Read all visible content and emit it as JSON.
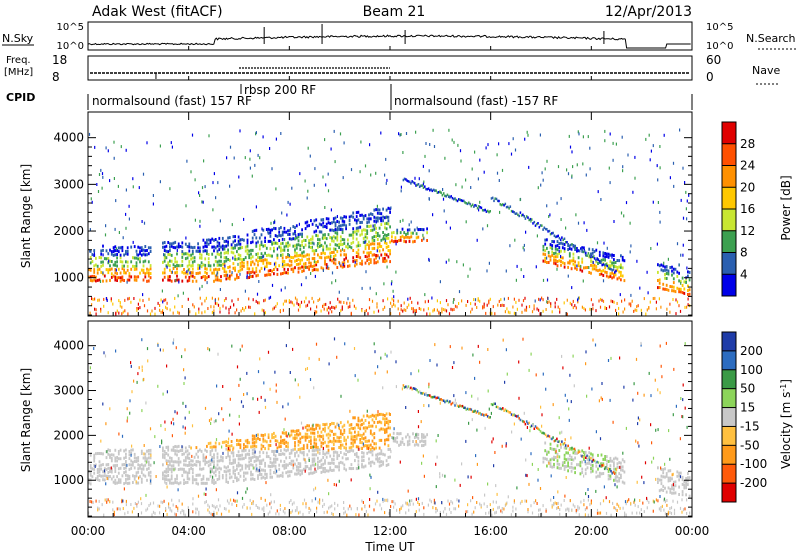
{
  "header": {
    "radar_title": "Adak West (fitACF)",
    "beam": "Beam 21",
    "date": "12/Apr/2013"
  },
  "top_panels": {
    "nsky_label": "N.Sky",
    "nsearch_label": "N.Search",
    "noise_ticks_left": [
      "10^5",
      "10^0"
    ],
    "noise_ticks_right": [
      "10^5",
      "10^0"
    ],
    "freq_label_line1": "Freq.",
    "freq_label_line2": "[MHz]",
    "freq_ticks": [
      "18",
      "8"
    ],
    "nave_label": "Nave",
    "nave_ticks": [
      "60",
      "0"
    ],
    "cpid_label": "CPID",
    "cpid_segments": [
      {
        "name": "normalsound (fast) 157 RF",
        "start_hour": 0,
        "end_hour": 12
      },
      {
        "name": "rbsp 200 RF",
        "start_hour": 6,
        "end_hour": 12
      },
      {
        "name": "normalsound (fast) -157 RF",
        "start_hour": 12,
        "end_hour": 24
      }
    ]
  },
  "power_colorbar": {
    "label": "Power [dB]",
    "ticks": [
      "28",
      "24",
      "20",
      "16",
      "12",
      "8",
      "4"
    ],
    "colors": [
      "#e00000",
      "#ff5000",
      "#ff9000",
      "#ffc800",
      "#c8e632",
      "#3ca050",
      "#2a5fb0",
      "#0000e8"
    ]
  },
  "velocity_colorbar": {
    "label_main": "Velocity [m s",
    "label_sup": "-1",
    "label_end": "]",
    "ticks": [
      "200",
      "100",
      "50",
      "15",
      "-15",
      "-50",
      "-100",
      "-200"
    ],
    "colors": [
      "#1f3ca8",
      "#2c6cc0",
      "#3a9a46",
      "#8cd45a",
      "#c8c8c8",
      "#ffc040",
      "#ff9a1a",
      "#ff5a0a",
      "#e00000"
    ]
  },
  "chart_data": {
    "type": "heatmap",
    "title": "Beam 21",
    "xlabel": "Time UT",
    "ylabel": "Slant Range [km]",
    "x_ticks": [
      "00:00",
      "04:00",
      "08:00",
      "12:00",
      "16:00",
      "20:00",
      "00:00"
    ],
    "y_ticks": [
      "1000",
      "2000",
      "3000",
      "4000"
    ],
    "xlim_hours": [
      0,
      24
    ],
    "ylim_km": [
      180,
      4550
    ],
    "panels": [
      {
        "quantity": "Power",
        "unit": "dB",
        "range": [
          0,
          30
        ]
      },
      {
        "quantity": "Velocity",
        "unit": "m s-1",
        "range": [
          -200,
          200
        ]
      }
    ]
  }
}
